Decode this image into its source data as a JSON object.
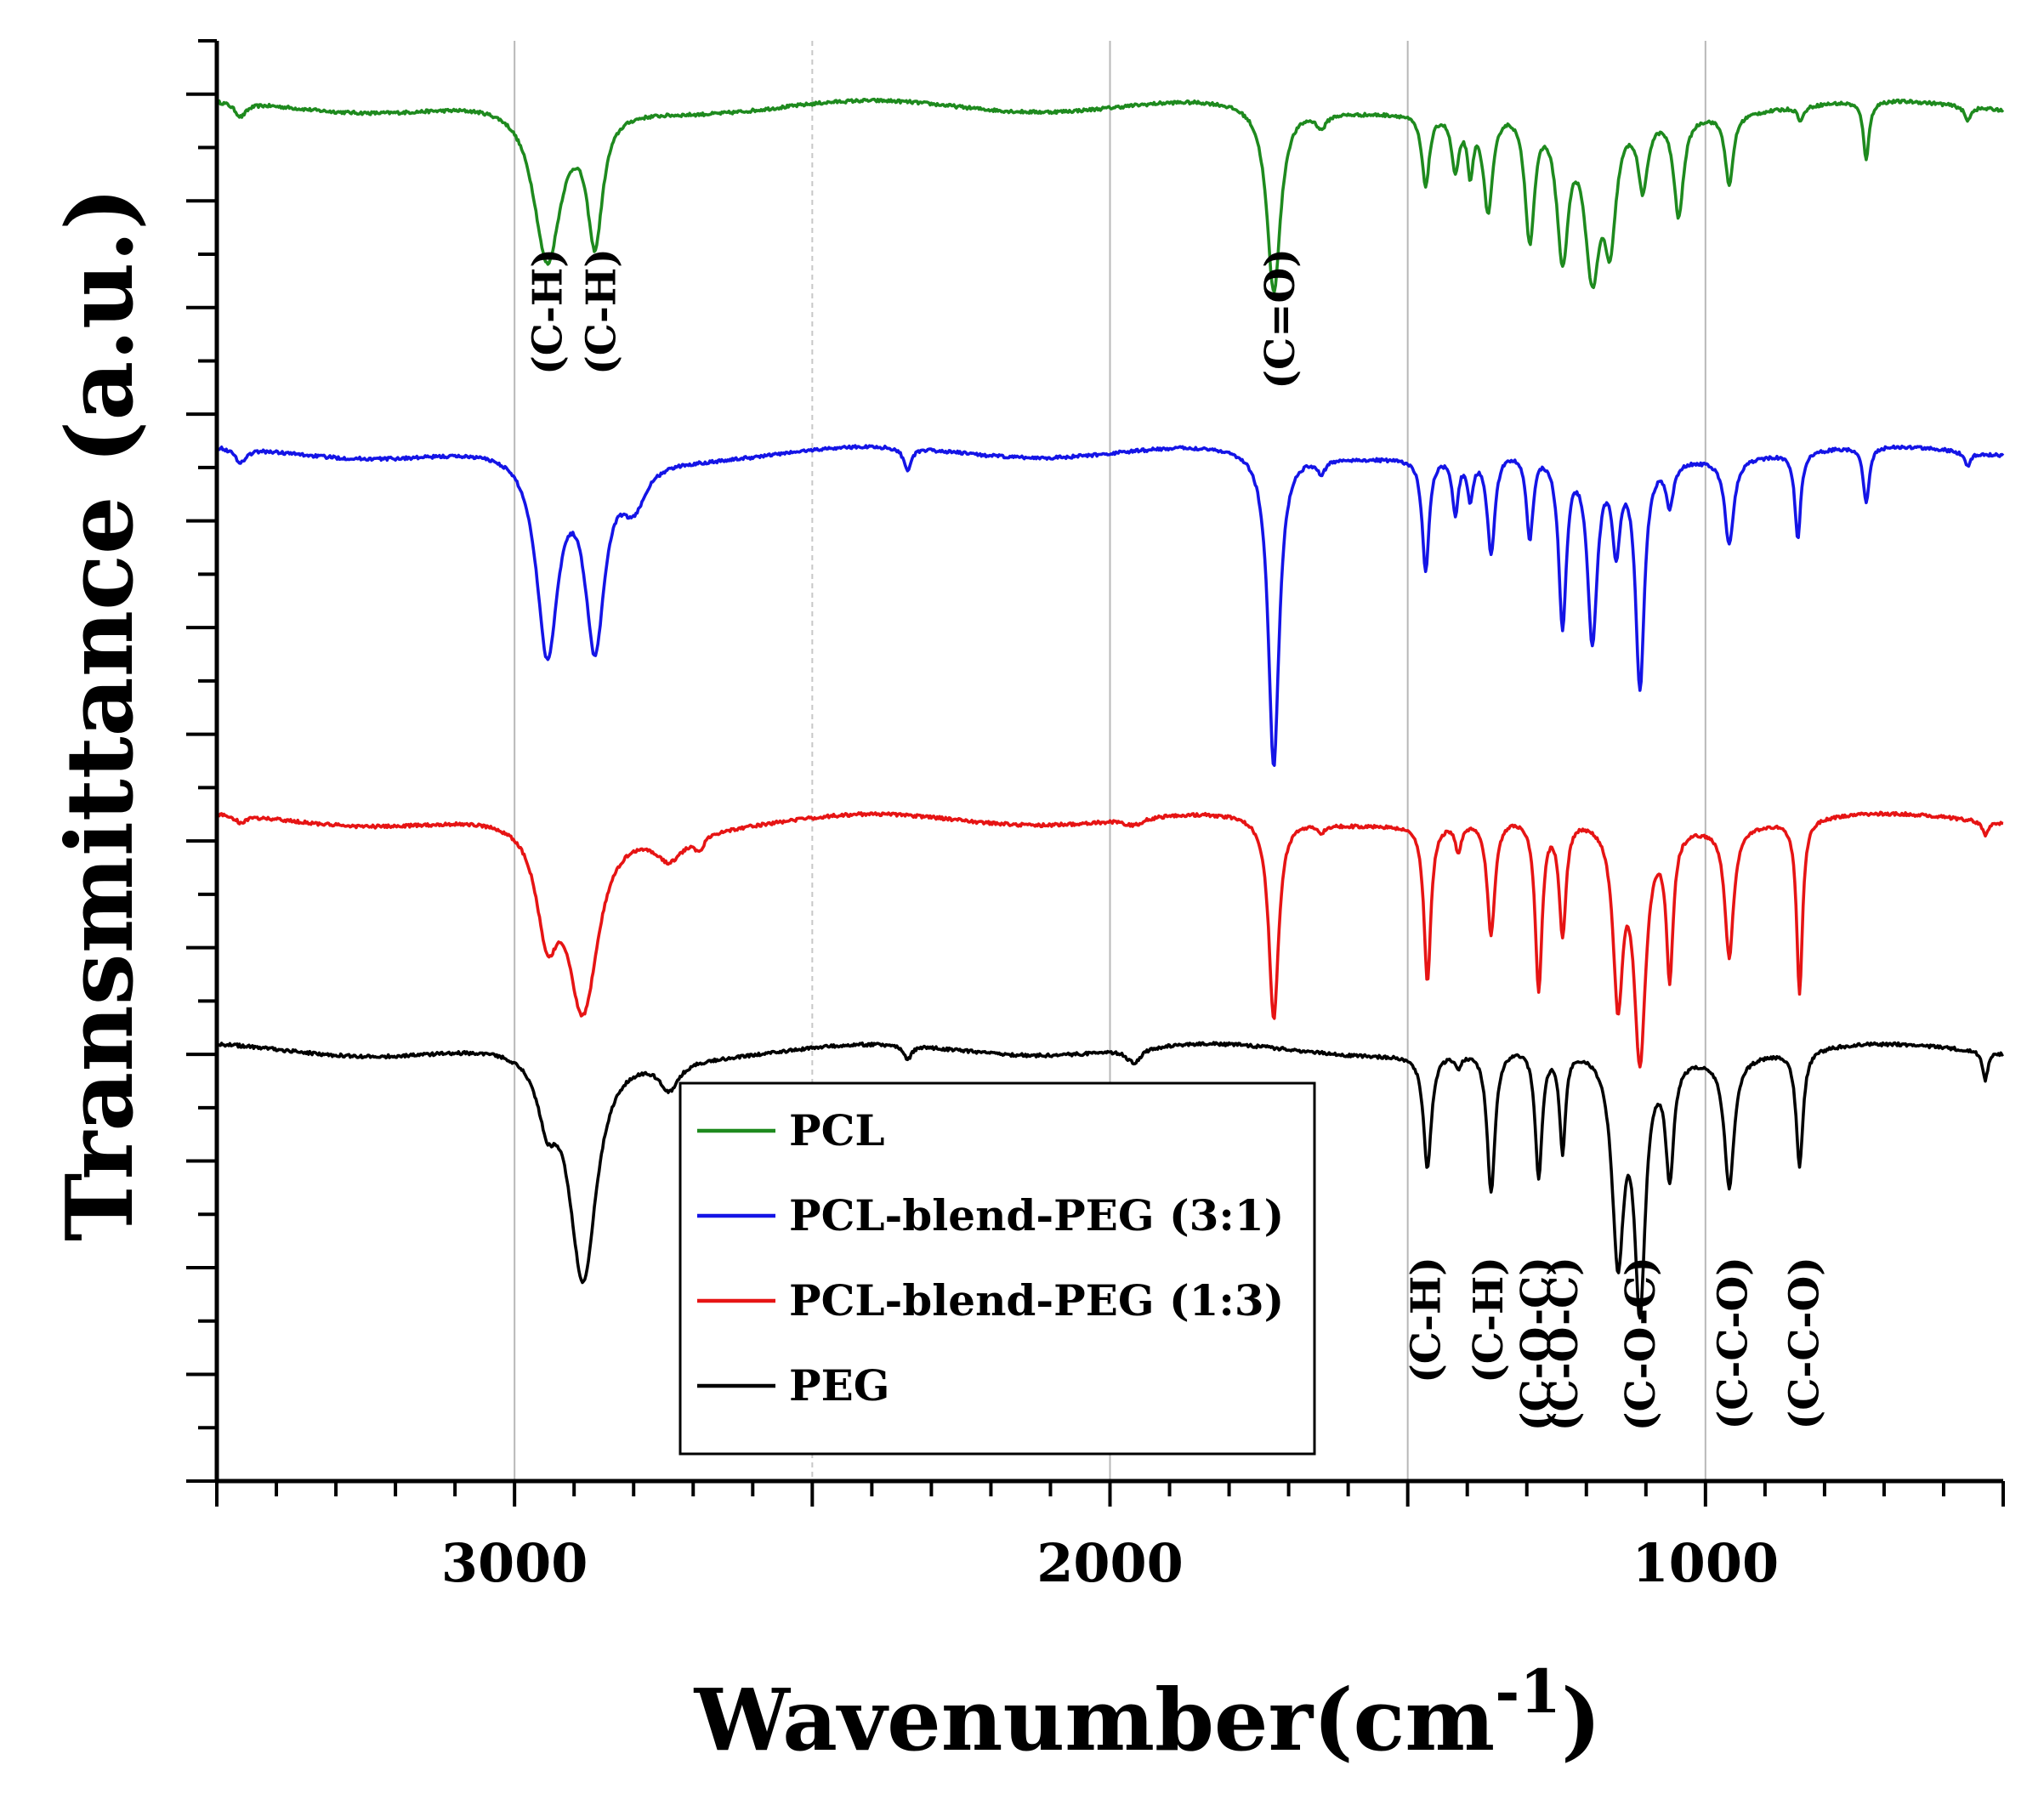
{
  "chart_data": {
    "type": "line",
    "title": "",
    "xlabel": "Wavenumber(cm",
    "xlabel_sup": "-1",
    "xlabel_tail": ")",
    "ylabel": "Transmittance (a.u.)",
    "xlim": [
      3500,
      500
    ],
    "xticks": [
      3000,
      2000,
      1000
    ],
    "x_gridlines": [
      3000,
      2500,
      2000,
      1500,
      1000
    ],
    "legend_position": "center-bottom",
    "series": [
      {
        "name": "PCL",
        "color": "#1e8a1e",
        "baseline": 0.955,
        "bands": [
          {
            "x": 3460,
            "depth": 0.01,
            "width": 12
          },
          {
            "x": 2945,
            "depth": 0.11,
            "width": 28
          },
          {
            "x": 2865,
            "depth": 0.09,
            "width": 16
          },
          {
            "x": 1725,
            "depth": 0.13,
            "width": 14
          },
          {
            "x": 1645,
            "depth": 0.01,
            "width": 10
          },
          {
            "x": 1470,
            "depth": 0.05,
            "width": 8
          },
          {
            "x": 1420,
            "depth": 0.04,
            "width": 8
          },
          {
            "x": 1395,
            "depth": 0.04,
            "width": 6
          },
          {
            "x": 1365,
            "depth": 0.07,
            "width": 10
          },
          {
            "x": 1295,
            "depth": 0.09,
            "width": 10
          },
          {
            "x": 1240,
            "depth": 0.1,
            "width": 12
          },
          {
            "x": 1190,
            "depth": 0.11,
            "width": 16
          },
          {
            "x": 1160,
            "depth": 0.08,
            "width": 12
          },
          {
            "x": 1105,
            "depth": 0.05,
            "width": 10
          },
          {
            "x": 1045,
            "depth": 0.07,
            "width": 10
          },
          {
            "x": 960,
            "depth": 0.05,
            "width": 8
          },
          {
            "x": 840,
            "depth": 0.01,
            "width": 6
          },
          {
            "x": 730,
            "depth": 0.04,
            "width": 6
          },
          {
            "x": 560,
            "depth": 0.01,
            "width": 6
          }
        ]
      },
      {
        "name": "PCL-blend-PEG (3:1)",
        "color": "#1414e6",
        "baseline": 0.715,
        "bands": [
          {
            "x": 3460,
            "depth": 0.01,
            "width": 12
          },
          {
            "x": 2945,
            "depth": 0.14,
            "width": 22
          },
          {
            "x": 2865,
            "depth": 0.13,
            "width": 20
          },
          {
            "x": 2800,
            "depth": 0.03,
            "width": 25
          },
          {
            "x": 2340,
            "depth": 0.015,
            "width": 8
          },
          {
            "x": 1725,
            "depth": 0.22,
            "width": 11
          },
          {
            "x": 1645,
            "depth": 0.01,
            "width": 8
          },
          {
            "x": 1470,
            "depth": 0.08,
            "width": 7
          },
          {
            "x": 1420,
            "depth": 0.04,
            "width": 6
          },
          {
            "x": 1395,
            "depth": 0.03,
            "width": 6
          },
          {
            "x": 1360,
            "depth": 0.07,
            "width": 8
          },
          {
            "x": 1295,
            "depth": 0.06,
            "width": 7
          },
          {
            "x": 1240,
            "depth": 0.12,
            "width": 8
          },
          {
            "x": 1190,
            "depth": 0.13,
            "width": 10
          },
          {
            "x": 1150,
            "depth": 0.06,
            "width": 8
          },
          {
            "x": 1110,
            "depth": 0.16,
            "width": 9
          },
          {
            "x": 1060,
            "depth": 0.03,
            "width": 8
          },
          {
            "x": 960,
            "depth": 0.06,
            "width": 9
          },
          {
            "x": 845,
            "depth": 0.06,
            "width": 6
          },
          {
            "x": 730,
            "depth": 0.04,
            "width": 6
          },
          {
            "x": 560,
            "depth": 0.01,
            "width": 6
          }
        ]
      },
      {
        "name": "PCL-blend-PEG (1:3)",
        "color": "#e61414",
        "baseline": 0.46,
        "bands": [
          {
            "x": 3460,
            "depth": 0.005,
            "width": 12
          },
          {
            "x": 2945,
            "depth": 0.07,
            "width": 22
          },
          {
            "x": 2885,
            "depth": 0.13,
            "width": 32
          },
          {
            "x": 2740,
            "depth": 0.02,
            "width": 30
          },
          {
            "x": 2690,
            "depth": 0.01,
            "width": 10
          },
          {
            "x": 1960,
            "depth": 0.005,
            "width": 20
          },
          {
            "x": 1725,
            "depth": 0.14,
            "width": 10
          },
          {
            "x": 1645,
            "depth": 0.005,
            "width": 8
          },
          {
            "x": 1467,
            "depth": 0.11,
            "width": 7
          },
          {
            "x": 1415,
            "depth": 0.02,
            "width": 6
          },
          {
            "x": 1360,
            "depth": 0.08,
            "width": 8
          },
          {
            "x": 1280,
            "depth": 0.12,
            "width": 7
          },
          {
            "x": 1240,
            "depth": 0.08,
            "width": 7
          },
          {
            "x": 1147,
            "depth": 0.12,
            "width": 10
          },
          {
            "x": 1110,
            "depth": 0.16,
            "width": 12
          },
          {
            "x": 1060,
            "depth": 0.1,
            "width": 7
          },
          {
            "x": 960,
            "depth": 0.09,
            "width": 9
          },
          {
            "x": 842,
            "depth": 0.12,
            "width": 6
          },
          {
            "x": 530,
            "depth": 0.01,
            "width": 6
          }
        ]
      },
      {
        "name": "PEG",
        "color": "#000000",
        "baseline": 0.3,
        "bands": [
          {
            "x": 2945,
            "depth": 0.04,
            "width": 20
          },
          {
            "x": 2885,
            "depth": 0.16,
            "width": 28
          },
          {
            "x": 2740,
            "depth": 0.02,
            "width": 20
          },
          {
            "x": 2340,
            "depth": 0.01,
            "width": 8
          },
          {
            "x": 1960,
            "depth": 0.01,
            "width": 15
          },
          {
            "x": 1467,
            "depth": 0.08,
            "width": 8
          },
          {
            "x": 1415,
            "depth": 0.01,
            "width": 6
          },
          {
            "x": 1360,
            "depth": 0.1,
            "width": 8
          },
          {
            "x": 1280,
            "depth": 0.09,
            "width": 7
          },
          {
            "x": 1240,
            "depth": 0.07,
            "width": 6
          },
          {
            "x": 1147,
            "depth": 0.14,
            "width": 12
          },
          {
            "x": 1110,
            "depth": 0.17,
            "width": 11
          },
          {
            "x": 1060,
            "depth": 0.08,
            "width": 8
          },
          {
            "x": 960,
            "depth": 0.09,
            "width": 10
          },
          {
            "x": 842,
            "depth": 0.08,
            "width": 7
          },
          {
            "x": 530,
            "depth": 0.02,
            "width": 5
          }
        ]
      }
    ],
    "annotations_top": [
      {
        "text": "(C-H)",
        "x": 2945
      },
      {
        "text": "(C-H)",
        "x": 2855
      },
      {
        "text": "(C=O)",
        "x": 1715
      }
    ],
    "annotations_bottom": [
      {
        "text": "(C-H)",
        "x": 1470
      },
      {
        "text": "(C-H)",
        "x": 1365
      },
      {
        "text": "(C-O-C)",
        "x": 1285
      },
      {
        "text": "(C-O-C)",
        "x": 1240
      },
      {
        "text": "(C-O-C)",
        "x": 1110
      },
      {
        "text": "(C-C-O)",
        "x": 955
      },
      {
        "text": "(C-C-O)",
        "x": 835
      }
    ]
  }
}
